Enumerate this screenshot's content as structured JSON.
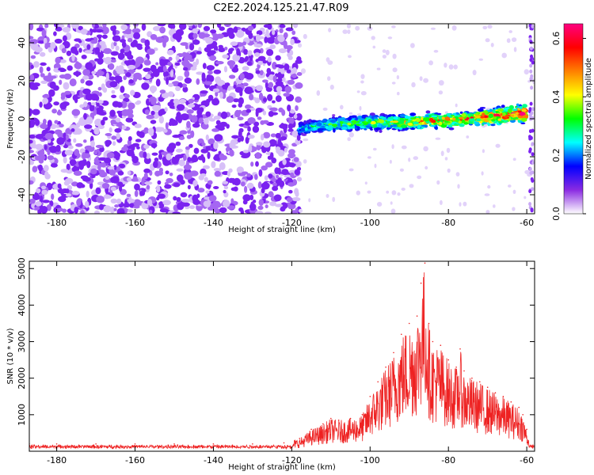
{
  "title": "C2E2.2024.125.21.47.R09",
  "chart_data": [
    {
      "type": "heatmap",
      "title": "C2E2.2024.125.21.47.R09",
      "xlabel": "Height of straight line (km)",
      "ylabel": "Frequency (Hz)",
      "xlim": [
        -187,
        -58
      ],
      "ylim": [
        -50,
        50
      ],
      "xticks": [
        -180,
        -160,
        -140,
        -120,
        -100,
        -80,
        -60
      ],
      "yticks": [
        -40,
        -20,
        0,
        20,
        40
      ],
      "grid": false,
      "colorbar": {
        "label": "Normalized spectral amplitude",
        "range": [
          0.0,
          0.65
        ],
        "ticks": [
          0.0,
          0.2,
          0.4,
          0.6
        ],
        "colormap": [
          "#ffffff",
          "#8a2be2",
          "#0000ff",
          "#00ffff",
          "#00ff00",
          "#ffff00",
          "#ff8000",
          "#ff0000",
          "#ff0080"
        ]
      },
      "noise_region": {
        "x_range": [
          -187,
          -118
        ],
        "freq_range": [
          -50,
          50
        ],
        "amplitude_range": [
          0.0,
          0.05
        ]
      },
      "signal_band": {
        "x": [
          -118,
          -110,
          -100,
          -95,
          -90,
          -85,
          -80,
          -75,
          -70,
          -65,
          -60
        ],
        "center_freq": [
          -5,
          -3,
          -2,
          -2,
          -2,
          -1,
          -1,
          0,
          1,
          2,
          3
        ],
        "half_width": [
          4,
          5,
          5,
          5,
          5,
          5,
          5,
          5,
          6,
          6,
          6
        ],
        "peak_amplitude": [
          0.2,
          0.25,
          0.3,
          0.35,
          0.4,
          0.45,
          0.45,
          0.45,
          0.5,
          0.55,
          0.6
        ]
      }
    },
    {
      "type": "line",
      "title": "",
      "xlabel": "Height of straight line (km)",
      "ylabel": "SNR (10 * v/v)",
      "xlim": [
        -187,
        -58
      ],
      "ylim": [
        0,
        5200
      ],
      "xticks": [
        -180,
        -160,
        -140,
        -120,
        -100,
        -80,
        -60
      ],
      "yticks": [
        1000,
        2000,
        3000,
        4000,
        5000
      ],
      "grid": false,
      "series": [
        {
          "color": "#ee2222",
          "x": [
            -187,
            -180,
            -170,
            -160,
            -150,
            -140,
            -130,
            -122,
            -118,
            -115,
            -112,
            -110,
            -108,
            -105,
            -102,
            -100,
            -98,
            -96,
            -94,
            -92,
            -90,
            -88,
            -87,
            -86,
            -85,
            -84,
            -82,
            -80,
            -78,
            -77,
            -76,
            -74,
            -72,
            -70,
            -68,
            -66,
            -64,
            -62,
            -61,
            -60,
            -59,
            -58
          ],
          "y": [
            200,
            200,
            200,
            200,
            200,
            200,
            200,
            230,
            350,
            600,
            750,
            900,
            850,
            900,
            1000,
            1500,
            1900,
            2300,
            2700,
            3200,
            3500,
            3700,
            4600,
            5150,
            3500,
            3000,
            2900,
            2500,
            2300,
            2800,
            2200,
            2000,
            1900,
            1750,
            1600,
            1500,
            1350,
            1200,
            1000,
            600,
            150,
            100
          ]
        }
      ]
    }
  ]
}
